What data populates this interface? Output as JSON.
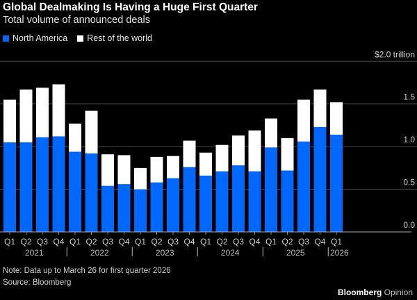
{
  "chart_data": {
    "type": "bar",
    "stacked": true,
    "title": "Global Dealmaking Is Having a Huge First Quarter",
    "subtitle": "Total volume of announced deals",
    "unit_label": "$2.0 trillion",
    "ylim": [
      0,
      2.0
    ],
    "yticks": [
      "0.0",
      "0.5",
      "1.0",
      "1.5"
    ],
    "grid": true,
    "legend_position": "top-left",
    "categories": [
      "Q1",
      "Q2",
      "Q3",
      "Q4",
      "Q1",
      "Q2",
      "Q3",
      "Q4",
      "Q1",
      "Q2",
      "Q3",
      "Q4",
      "Q1",
      "Q2",
      "Q3",
      "Q4",
      "Q1",
      "Q2",
      "Q3",
      "Q4",
      "Q1"
    ],
    "years": [
      "2021",
      "2022",
      "2023",
      "2024",
      "2025",
      "2026"
    ],
    "series": [
      {
        "name": "North America",
        "color": "#0068ff",
        "values": [
          1.05,
          1.05,
          1.11,
          1.12,
          0.94,
          0.92,
          0.54,
          0.56,
          0.5,
          0.58,
          0.63,
          0.76,
          0.66,
          0.71,
          0.78,
          0.71,
          0.99,
          0.72,
          1.06,
          1.23,
          1.14
        ]
      },
      {
        "name": "Rest of the world",
        "color": "#ffffff",
        "values": [
          0.5,
          0.62,
          0.58,
          0.61,
          0.33,
          0.5,
          0.37,
          0.34,
          0.25,
          0.3,
          0.26,
          0.31,
          0.27,
          0.31,
          0.35,
          0.48,
          0.34,
          0.38,
          0.49,
          0.44,
          0.38
        ]
      }
    ]
  },
  "footer": {
    "note": "Note: Data up to March 26 for first quarter 2026",
    "source": "Source: Bloomberg",
    "brand": "Bloomberg",
    "brand_suffix": "Opinion"
  }
}
